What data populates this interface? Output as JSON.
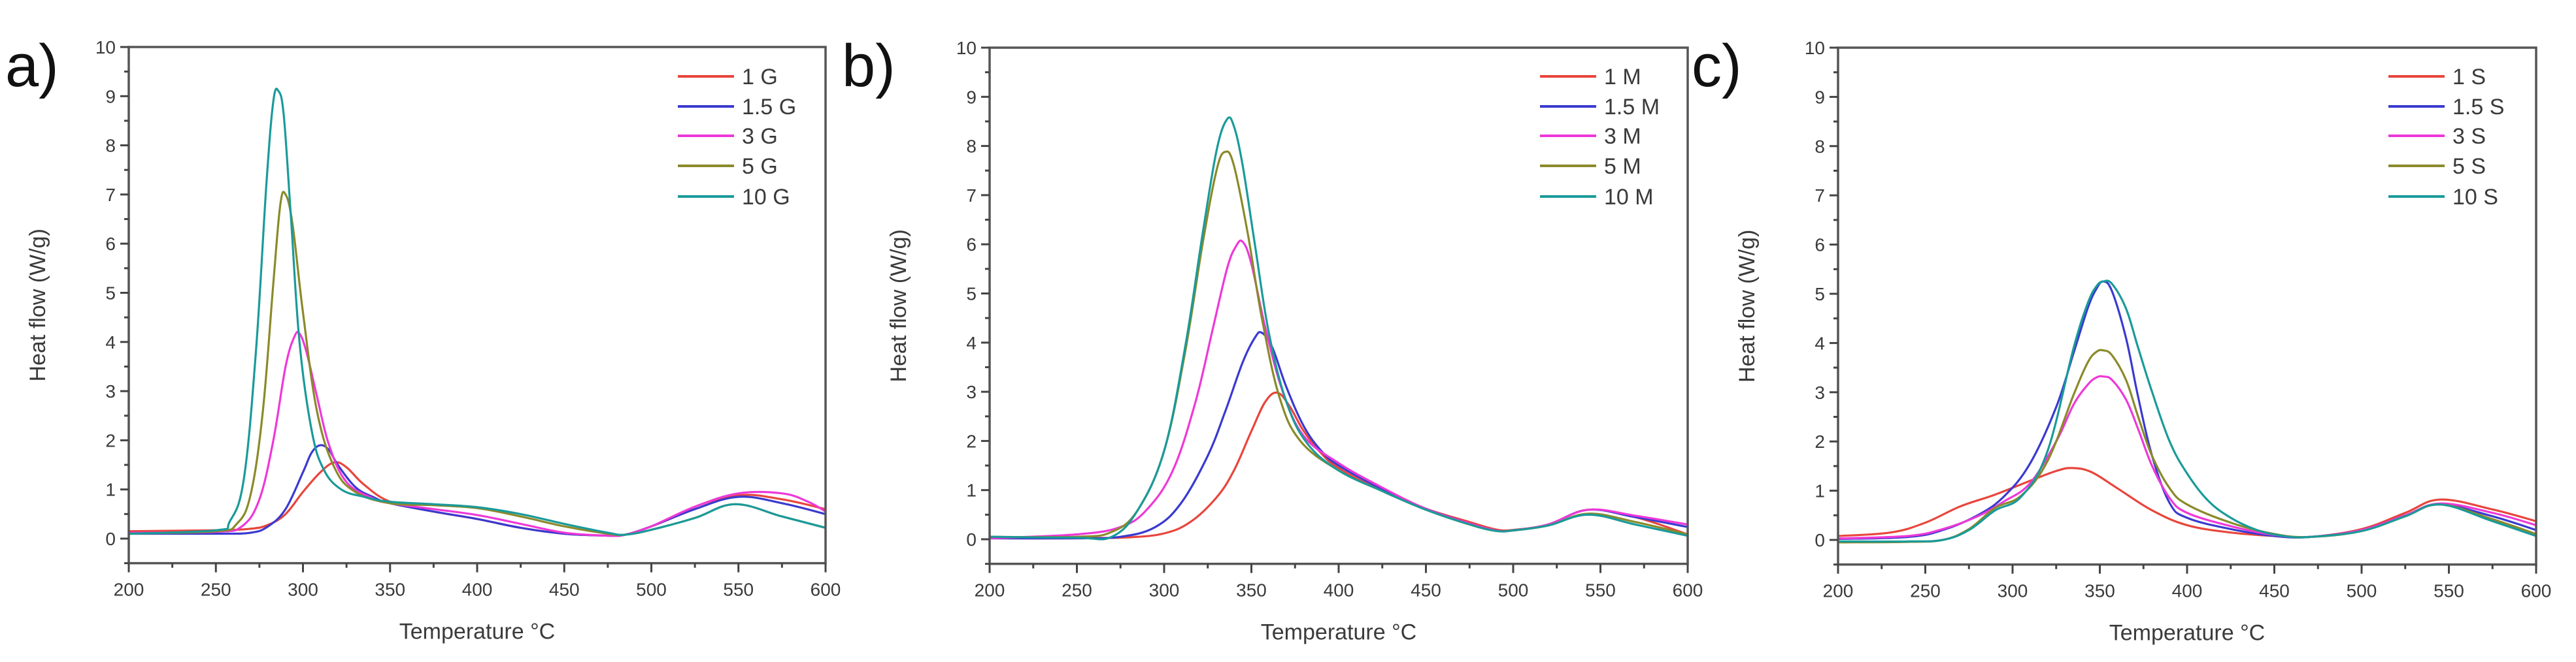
{
  "figure": {
    "panel_labels": [
      "a)",
      "b)",
      "c)"
    ],
    "y_axis_title": "Heat flow (W/g)",
    "x_axis_title": "Temperature °C",
    "x_ticks": [
      200,
      250,
      300,
      350,
      400,
      450,
      500,
      550,
      600
    ],
    "y_ticks": [
      0,
      1,
      2,
      3,
      4,
      5,
      6,
      7,
      8,
      9,
      10
    ]
  },
  "series_colors": {
    "1": "#e8453c",
    "1.5": "#3a3ad0",
    "3": "#ee38d8",
    "5": "#8a8a2a",
    "10": "#1a9a9a"
  },
  "chart_data": [
    {
      "type": "line",
      "panel": "a)",
      "title": "",
      "xlabel": "Temperature °C",
      "ylabel": "Heat flow (W/g)",
      "xlim": [
        200,
        600
      ],
      "ylim": [
        -0.5,
        10
      ],
      "grid": false,
      "legend_position": "upper right",
      "series": [
        {
          "name": "1 G",
          "color": "#e8453c",
          "x": [
            200,
            250,
            270,
            280,
            290,
            300,
            310,
            318,
            325,
            335,
            350,
            375,
            400,
            425,
            450,
            475,
            485,
            500,
            525,
            550,
            575,
            600
          ],
          "y": [
            0.15,
            0.17,
            0.2,
            0.28,
            0.5,
            0.95,
            1.35,
            1.55,
            1.45,
            1.1,
            0.75,
            0.55,
            0.4,
            0.22,
            0.1,
            0.06,
            0.08,
            0.25,
            0.6,
            0.88,
            0.8,
            0.6
          ]
        },
        {
          "name": "1.5 G",
          "color": "#3a3ad0",
          "x": [
            200,
            250,
            270,
            280,
            290,
            300,
            305,
            310,
            315,
            320,
            330,
            340,
            350,
            375,
            400,
            425,
            450,
            475,
            485,
            500,
            525,
            550,
            575,
            600
          ],
          "y": [
            0.1,
            0.1,
            0.12,
            0.25,
            0.6,
            1.35,
            1.75,
            1.9,
            1.8,
            1.5,
            1.05,
            0.85,
            0.72,
            0.55,
            0.4,
            0.22,
            0.1,
            0.06,
            0.08,
            0.25,
            0.6,
            0.85,
            0.72,
            0.5
          ]
        },
        {
          "name": "3 G",
          "color": "#ee38d8",
          "x": [
            200,
            250,
            265,
            275,
            283,
            290,
            295,
            298,
            302,
            308,
            315,
            325,
            340,
            350,
            375,
            400,
            425,
            450,
            475,
            485,
            500,
            525,
            550,
            575,
            590,
            600
          ],
          "y": [
            0.12,
            0.14,
            0.25,
            0.8,
            2.0,
            3.5,
            4.1,
            4.17,
            3.8,
            2.9,
            1.9,
            1.15,
            0.82,
            0.72,
            0.6,
            0.48,
            0.3,
            0.12,
            0.06,
            0.08,
            0.25,
            0.65,
            0.92,
            0.92,
            0.75,
            0.55
          ]
        },
        {
          "name": "5 G",
          "color": "#8a8a2a",
          "x": [
            200,
            250,
            262,
            270,
            277,
            283,
            287,
            290,
            294,
            300,
            308,
            318,
            330,
            350,
            375,
            400,
            425,
            450,
            475,
            485,
            500,
            525,
            548,
            575,
            600
          ],
          "y": [
            0.1,
            0.15,
            0.3,
            0.9,
            2.6,
            5.2,
            6.8,
            7.0,
            6.4,
            4.6,
            2.6,
            1.45,
            0.95,
            0.72,
            0.68,
            0.62,
            0.45,
            0.25,
            0.1,
            0.08,
            0.18,
            0.42,
            0.7,
            0.45,
            0.22
          ]
        },
        {
          "name": "10 G",
          "color": "#1a9a9a",
          "x": [
            200,
            250,
            258,
            266,
            273,
            279,
            283,
            286,
            289,
            293,
            298,
            305,
            312,
            322,
            335,
            350,
            375,
            400,
            425,
            450,
            475,
            485,
            500,
            525,
            548,
            575,
            600
          ],
          "y": [
            0.1,
            0.17,
            0.35,
            1.2,
            3.8,
            7.2,
            8.9,
            9.1,
            8.6,
            6.6,
            4.0,
            2.2,
            1.4,
            1.0,
            0.85,
            0.75,
            0.7,
            0.64,
            0.5,
            0.3,
            0.12,
            0.08,
            0.18,
            0.42,
            0.7,
            0.45,
            0.22
          ]
        }
      ]
    },
    {
      "type": "line",
      "panel": "b)",
      "title": "",
      "xlabel": "Temperature °C",
      "ylabel": "Heat flow (W/g)",
      "xlim": [
        200,
        600
      ],
      "ylim": [
        -0.5,
        10
      ],
      "grid": false,
      "legend_position": "upper right",
      "series": [
        {
          "name": "1 M",
          "color": "#e8453c",
          "x": [
            200,
            250,
            280,
            300,
            315,
            330,
            340,
            350,
            358,
            365,
            372,
            380,
            390,
            400,
            425,
            450,
            475,
            490,
            500,
            520,
            543,
            570,
            600
          ],
          "y": [
            0.02,
            0.02,
            0.04,
            0.12,
            0.35,
            0.85,
            1.4,
            2.2,
            2.8,
            2.98,
            2.7,
            2.2,
            1.75,
            1.45,
            0.98,
            0.62,
            0.35,
            0.2,
            0.19,
            0.3,
            0.6,
            0.45,
            0.1
          ]
        },
        {
          "name": "1.5 M",
          "color": "#3a3ad0",
          "x": [
            200,
            250,
            275,
            295,
            310,
            325,
            335,
            345,
            352,
            356,
            362,
            370,
            380,
            390,
            400,
            425,
            450,
            475,
            490,
            500,
            520,
            543,
            570,
            600
          ],
          "y": [
            0.02,
            0.02,
            0.05,
            0.25,
            0.75,
            1.7,
            2.6,
            3.6,
            4.1,
            4.2,
            3.9,
            3.1,
            2.3,
            1.8,
            1.5,
            1.02,
            0.62,
            0.32,
            0.18,
            0.18,
            0.3,
            0.6,
            0.45,
            0.25
          ]
        },
        {
          "name": "3 M",
          "color": "#ee38d8",
          "x": [
            200,
            250,
            275,
            290,
            305,
            318,
            328,
            336,
            341,
            345,
            350,
            358,
            368,
            380,
            400,
            425,
            450,
            475,
            490,
            500,
            520,
            543,
            570,
            600
          ],
          "y": [
            0.02,
            0.1,
            0.25,
            0.6,
            1.4,
            2.8,
            4.3,
            5.5,
            5.95,
            6.05,
            5.6,
            4.3,
            3.0,
            2.1,
            1.55,
            1.05,
            0.62,
            0.32,
            0.18,
            0.18,
            0.3,
            0.6,
            0.48,
            0.3
          ]
        },
        {
          "name": "5 M",
          "color": "#8a8a2a",
          "x": [
            200,
            250,
            270,
            285,
            300,
            312,
            322,
            330,
            335,
            340,
            348,
            356,
            366,
            378,
            400,
            425,
            450,
            475,
            490,
            500,
            520,
            543,
            570,
            600
          ],
          "y": [
            0.05,
            0.05,
            0.15,
            0.6,
            1.8,
            3.8,
            6.0,
            7.5,
            7.88,
            7.6,
            6.2,
            4.5,
            2.9,
            2.0,
            1.4,
            0.98,
            0.6,
            0.3,
            0.17,
            0.18,
            0.28,
            0.52,
            0.35,
            0.1
          ]
        },
        {
          "name": "10 M",
          "color": "#1a9a9a",
          "x": [
            200,
            250,
            270,
            285,
            300,
            312,
            322,
            330,
            336,
            340,
            345,
            352,
            360,
            370,
            382,
            400,
            425,
            450,
            475,
            490,
            500,
            520,
            543,
            570,
            600
          ],
          "y": [
            0.05,
            0.03,
            0.05,
            0.6,
            1.8,
            3.9,
            6.2,
            7.9,
            8.54,
            8.4,
            7.6,
            6.0,
            4.2,
            2.8,
            1.95,
            1.4,
            0.98,
            0.6,
            0.3,
            0.17,
            0.18,
            0.28,
            0.5,
            0.3,
            0.07
          ]
        }
      ]
    },
    {
      "type": "line",
      "panel": "c)",
      "title": "",
      "xlabel": "Temperature °C",
      "ylabel": "Heat flow (W/g)",
      "xlim": [
        200,
        600
      ],
      "ylim": [
        -0.5,
        10
      ],
      "grid": false,
      "legend_position": "upper right",
      "series": [
        {
          "name": "1 S",
          "color": "#e8453c",
          "x": [
            200,
            230,
            250,
            270,
            290,
            310,
            325,
            334,
            345,
            360,
            380,
            400,
            425,
            450,
            470,
            500,
            525,
            545,
            575,
            600
          ],
          "y": [
            0.08,
            0.15,
            0.35,
            0.68,
            0.92,
            1.2,
            1.4,
            1.46,
            1.38,
            1.05,
            0.6,
            0.3,
            0.15,
            0.08,
            0.06,
            0.22,
            0.55,
            0.82,
            0.62,
            0.38
          ]
        },
        {
          "name": "1.5 S",
          "color": "#3a3ad0",
          "x": [
            200,
            240,
            260,
            280,
            295,
            310,
            325,
            335,
            343,
            348,
            352,
            357,
            365,
            372,
            380,
            390,
            400,
            425,
            450,
            470,
            500,
            525,
            545,
            575,
            600
          ],
          "y": [
            0.02,
            0.06,
            0.2,
            0.5,
            0.88,
            1.55,
            2.7,
            3.8,
            4.7,
            5.1,
            5.25,
            5.05,
            4.1,
            2.9,
            1.7,
            0.75,
            0.45,
            0.22,
            0.08,
            0.06,
            0.2,
            0.5,
            0.72,
            0.48,
            0.2
          ]
        },
        {
          "name": "3 S",
          "color": "#ee38d8",
          "x": [
            200,
            240,
            260,
            280,
            295,
            310,
            325,
            335,
            343,
            348,
            352,
            357,
            365,
            372,
            380,
            390,
            400,
            425,
            450,
            470,
            500,
            525,
            545,
            575,
            600
          ],
          "y": [
            0.03,
            0.08,
            0.22,
            0.48,
            0.78,
            1.15,
            2.0,
            2.75,
            3.15,
            3.3,
            3.32,
            3.25,
            2.85,
            2.25,
            1.5,
            0.85,
            0.55,
            0.28,
            0.1,
            0.06,
            0.2,
            0.5,
            0.74,
            0.55,
            0.3
          ]
        },
        {
          "name": "5 S",
          "color": "#8a8a2a",
          "x": [
            200,
            240,
            260,
            275,
            290,
            305,
            320,
            335,
            343,
            348,
            352,
            357,
            365,
            372,
            380,
            390,
            400,
            425,
            450,
            470,
            500,
            525,
            545,
            575,
            600
          ],
          "y": [
            -0.05,
            -0.04,
            0.0,
            0.22,
            0.65,
            0.9,
            1.6,
            2.95,
            3.6,
            3.82,
            3.85,
            3.75,
            3.25,
            2.5,
            1.7,
            1.05,
            0.72,
            0.35,
            0.12,
            0.06,
            0.18,
            0.48,
            0.72,
            0.42,
            0.12
          ]
        },
        {
          "name": "10 S",
          "color": "#1a9a9a",
          "x": [
            200,
            240,
            260,
            275,
            290,
            305,
            320,
            335,
            343,
            348,
            352,
            357,
            365,
            372,
            380,
            390,
            400,
            412,
            425,
            440,
            455,
            470,
            500,
            525,
            545,
            575,
            600
          ],
          "y": [
            -0.03,
            -0.03,
            0.0,
            0.2,
            0.6,
            0.88,
            1.8,
            3.9,
            4.8,
            5.15,
            5.25,
            5.2,
            4.7,
            3.9,
            3.0,
            2.0,
            1.35,
            0.8,
            0.45,
            0.2,
            0.08,
            0.06,
            0.18,
            0.48,
            0.72,
            0.38,
            0.08
          ]
        }
      ]
    }
  ]
}
